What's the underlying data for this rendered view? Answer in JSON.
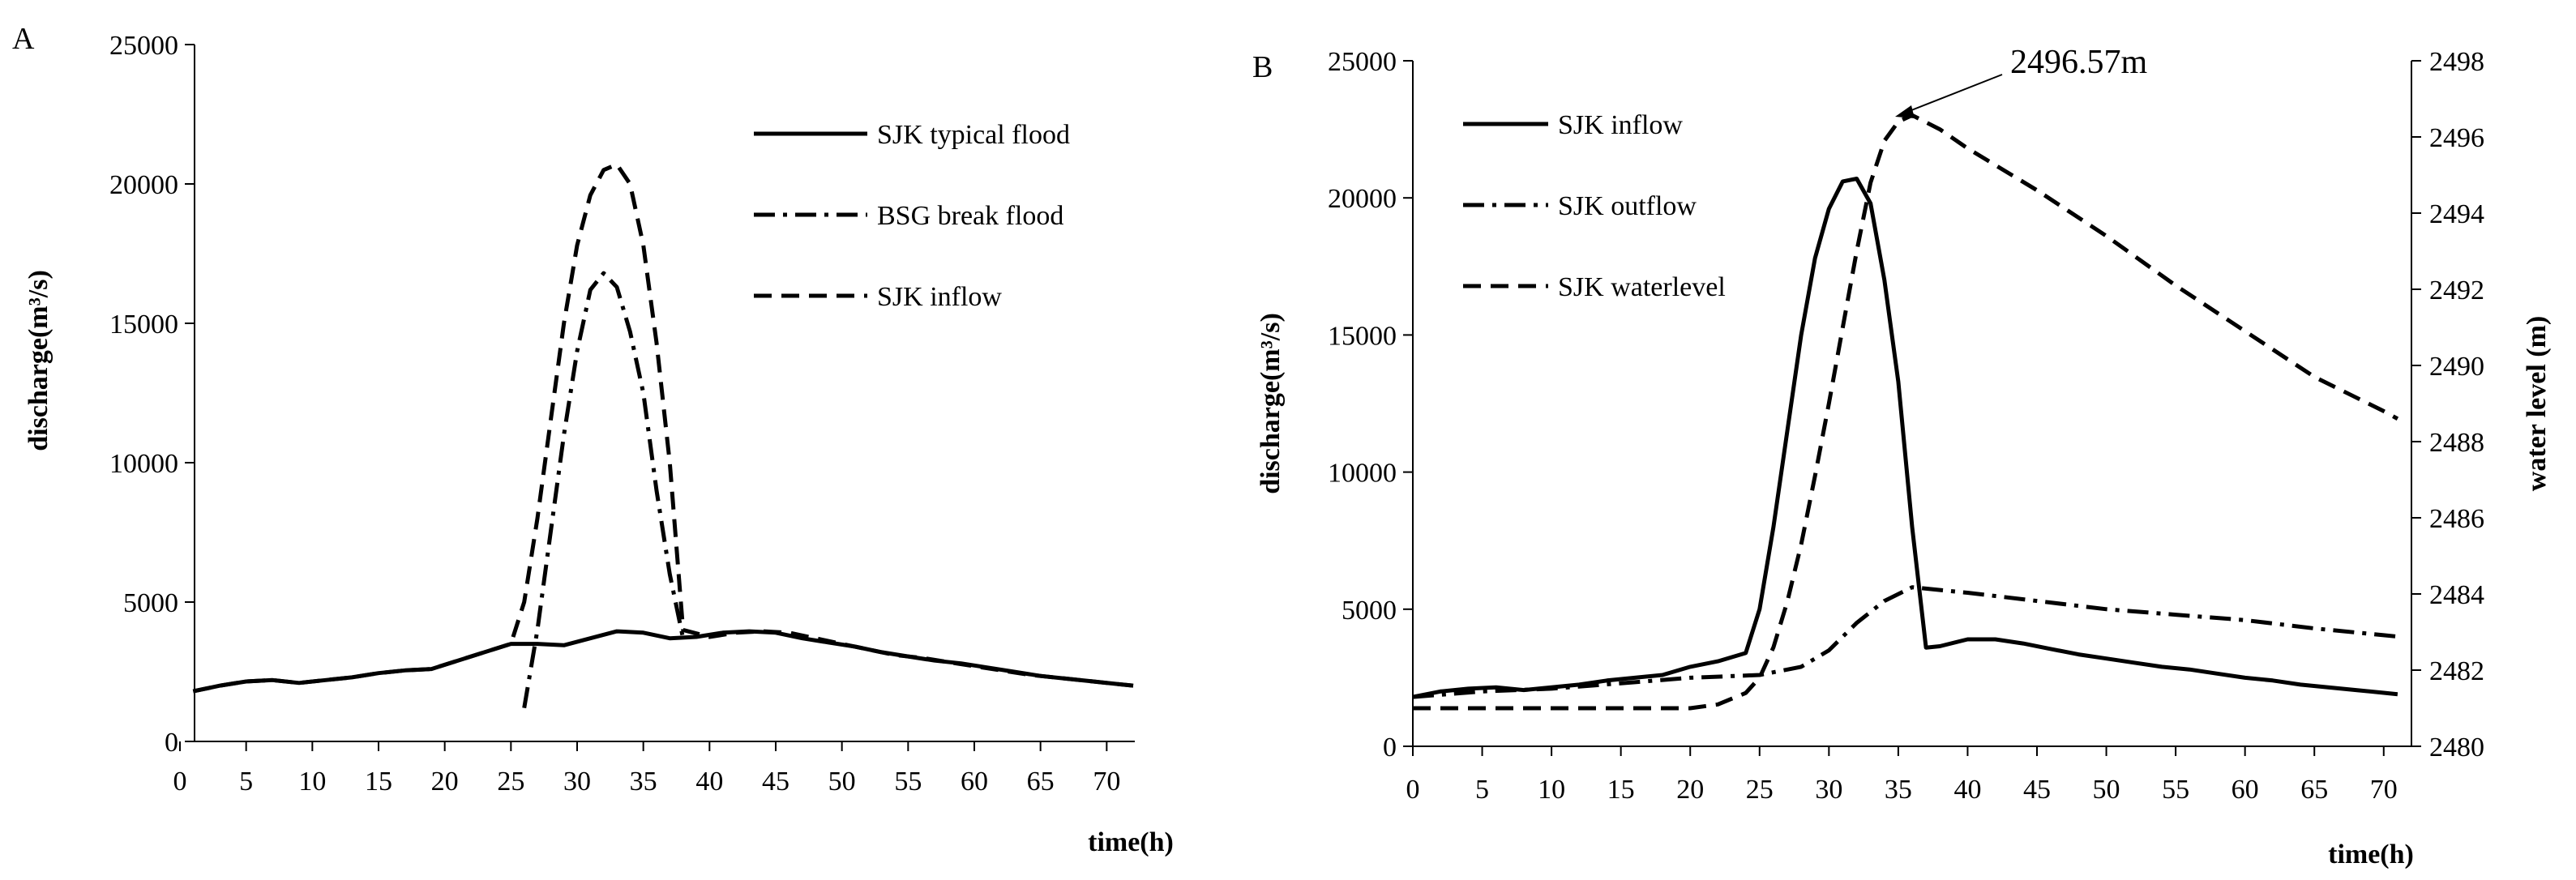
{
  "chart_data": [
    {
      "type": "line",
      "panel_label": "A",
      "xlabel": "time(h)",
      "ylabel": "discharge(m³/s)",
      "xlim": [
        0,
        72
      ],
      "ylim": [
        0,
        25000
      ],
      "x_ticks": [
        "0",
        "5",
        "10",
        "15",
        "20",
        "25",
        "30",
        "35",
        "40",
        "45",
        "50",
        "55",
        "60",
        "65",
        "70"
      ],
      "y_ticks": [
        "0",
        "5000",
        "10000",
        "15000",
        "20000",
        "25000"
      ],
      "legend": [
        "SJK typical flood",
        "BSG break flood",
        "SJK inflow"
      ],
      "legend_position": "top-right",
      "series": [
        {
          "name": "SJK typical flood",
          "style": "solid",
          "x": [
            1,
            3,
            5,
            7,
            9,
            11,
            13,
            15,
            17,
            19,
            21,
            23,
            25,
            27,
            29,
            31,
            33,
            35,
            37,
            39,
            41,
            43,
            45,
            47,
            49,
            51,
            53,
            55,
            57,
            59,
            61,
            63,
            65,
            67,
            69,
            71,
            72
          ],
          "y": [
            1800,
            2000,
            2150,
            2200,
            2100,
            2200,
            2300,
            2450,
            2550,
            2600,
            2900,
            3200,
            3500,
            3500,
            3450,
            3700,
            3950,
            3900,
            3700,
            3750,
            3900,
            3950,
            3900,
            3700,
            3550,
            3400,
            3200,
            3050,
            2900,
            2800,
            2650,
            2500,
            2350,
            2250,
            2150,
            2050,
            2000
          ]
        },
        {
          "name": "BSG break flood",
          "style": "dashdot",
          "x": [
            26,
            27,
            28,
            29,
            30,
            31,
            32,
            33,
            34,
            35,
            36,
            37,
            38
          ],
          "y": [
            1200,
            4000,
            7500,
            11000,
            14000,
            16200,
            16800,
            16300,
            14700,
            12500,
            9000,
            6000,
            3700
          ]
        },
        {
          "name": "SJK inflow",
          "style": "dashed",
          "x": [
            1,
            3,
            5,
            7,
            9,
            11,
            13,
            15,
            17,
            19,
            21,
            23,
            25,
            26,
            27,
            28,
            29,
            30,
            31,
            32,
            33,
            34,
            35,
            36,
            37,
            37.5,
            38,
            40,
            42,
            44,
            46,
            48,
            50,
            52,
            54,
            56,
            58,
            60,
            62,
            64,
            66,
            68,
            70,
            72
          ],
          "y": [
            1800,
            2000,
            2150,
            2200,
            2100,
            2200,
            2300,
            2450,
            2550,
            2600,
            2900,
            3200,
            3500,
            5000,
            8000,
            11500,
            15000,
            17800,
            19600,
            20500,
            20700,
            20000,
            17800,
            14300,
            10000,
            7000,
            4000,
            3750,
            3900,
            3950,
            3900,
            3700,
            3500,
            3300,
            3100,
            3000,
            2850,
            2700,
            2550,
            2400,
            2300,
            2200,
            2100,
            2000
          ]
        }
      ]
    },
    {
      "type": "line",
      "panel_label": "B",
      "xlabel": "time(h)",
      "ylabel": "discharge(m³/s)",
      "ylabel_right": "water level (m)",
      "xlim": [
        0,
        72
      ],
      "ylim": [
        0,
        25000
      ],
      "ylim_right": [
        2480,
        2498
      ],
      "x_ticks": [
        "0",
        "5",
        "10",
        "15",
        "20",
        "25",
        "30",
        "35",
        "40",
        "45",
        "50",
        "55",
        "60",
        "65",
        "70"
      ],
      "y_ticks": [
        "0",
        "5000",
        "10000",
        "15000",
        "20000",
        "25000"
      ],
      "y_ticks_right": [
        "2480",
        "2482",
        "2484",
        "2486",
        "2488",
        "2490",
        "2492",
        "2494",
        "2496",
        "2498"
      ],
      "legend": [
        "SJK inflow",
        "SJK outflow",
        "SJK waterlevel"
      ],
      "legend_position": "top-left",
      "annotation": {
        "text": "2496.57m",
        "x": 36,
        "y": 2496.57
      },
      "series": [
        {
          "name": "SJK inflow",
          "axis": "left",
          "style": "solid",
          "x": [
            0,
            2,
            4,
            6,
            8,
            10,
            12,
            14,
            16,
            18,
            20,
            22,
            24,
            25,
            26,
            27,
            28,
            29,
            30,
            31,
            32,
            33,
            34,
            35,
            36,
            37,
            38,
            40,
            42,
            44,
            46,
            48,
            50,
            52,
            54,
            56,
            58,
            60,
            62,
            64,
            66,
            68,
            70,
            71
          ],
          "y": [
            1800,
            2000,
            2100,
            2150,
            2050,
            2150,
            2250,
            2400,
            2500,
            2600,
            2900,
            3100,
            3400,
            5000,
            8000,
            11500,
            15000,
            17800,
            19600,
            20600,
            20700,
            19800,
            17000,
            13300,
            8000,
            3600,
            3650,
            3900,
            3900,
            3750,
            3550,
            3350,
            3200,
            3050,
            2900,
            2800,
            2650,
            2500,
            2400,
            2250,
            2150,
            2050,
            1950,
            1900
          ]
        },
        {
          "name": "SJK outflow",
          "axis": "left",
          "style": "dashdot",
          "x": [
            0,
            5,
            10,
            15,
            20,
            25,
            28,
            30,
            32,
            34,
            36,
            40,
            45,
            50,
            55,
            60,
            65,
            70,
            71
          ],
          "y": [
            1800,
            2000,
            2100,
            2300,
            2500,
            2600,
            2900,
            3500,
            4500,
            5300,
            5800,
            5600,
            5300,
            5000,
            4800,
            4600,
            4300,
            4050,
            4000
          ],
          "note": "starts following the inflow curve, then diverges after ~25h"
        },
        {
          "name": "SJK waterlevel",
          "axis": "right",
          "style": "dashed",
          "x": [
            0,
            5,
            10,
            15,
            20,
            22,
            24,
            25,
            26,
            27,
            28,
            29,
            30,
            31,
            32,
            33,
            34,
            35,
            36,
            38,
            40,
            45,
            50,
            55,
            60,
            65,
            70,
            71
          ],
          "y": [
            2481,
            2481,
            2481,
            2481,
            2481,
            2481.1,
            2481.4,
            2481.8,
            2482.6,
            2483.8,
            2485.3,
            2487.1,
            2489.0,
            2491.0,
            2493.0,
            2494.8,
            2495.9,
            2496.4,
            2496.57,
            2496.2,
            2495.7,
            2494.6,
            2493.4,
            2492.1,
            2490.9,
            2489.7,
            2488.8,
            2488.6
          ]
        }
      ]
    }
  ]
}
